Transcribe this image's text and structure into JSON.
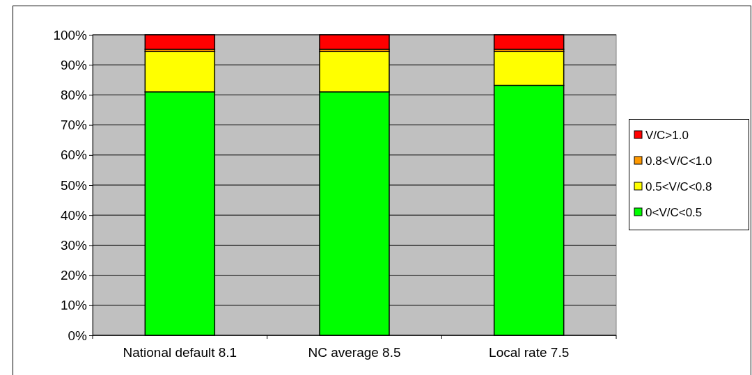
{
  "chart_data": {
    "type": "bar",
    "stacked": true,
    "categories": [
      "National default 8.1",
      "NC average 8.5",
      "Local rate 7.5"
    ],
    "series": [
      {
        "name": "0<V/C<0.5",
        "color": "#00ff00",
        "values": [
          81,
          81,
          83.2
        ]
      },
      {
        "name": "0.5<V/C<0.8",
        "color": "#ffff00",
        "values": [
          13.4,
          13.4,
          11.2
        ]
      },
      {
        "name": "0.8<V/C<1.0",
        "color": "#ff9900",
        "values": [
          0.8,
          0.8,
          0.8
        ]
      },
      {
        "name": "V/C>1.0",
        "color": "#ff0000",
        "values": [
          4.8,
          4.8,
          4.8
        ]
      }
    ],
    "ylim": [
      0,
      100
    ],
    "yticks": [
      {
        "value": 0,
        "label": "0%"
      },
      {
        "value": 10,
        "label": "10%"
      },
      {
        "value": 20,
        "label": "20%"
      },
      {
        "value": 30,
        "label": "30%"
      },
      {
        "value": 40,
        "label": "40%"
      },
      {
        "value": 50,
        "label": "50%"
      },
      {
        "value": 60,
        "label": "60%"
      },
      {
        "value": 70,
        "label": "70%"
      },
      {
        "value": 80,
        "label": "80%"
      },
      {
        "value": 90,
        "label": "90%"
      },
      {
        "value": 100,
        "label": "100%"
      }
    ],
    "grid": "y",
    "legend": "right"
  }
}
